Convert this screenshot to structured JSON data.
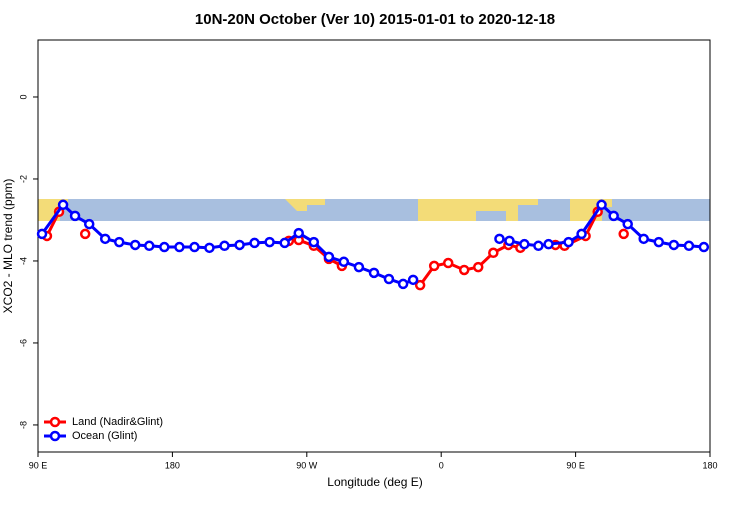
{
  "chart_data": {
    "type": "line",
    "title": "10N-20N October (Ver 10)   2015-01-01 to 2020-12-18",
    "x_label": "Longitude (deg E)",
    "y_label": "XCO2 - MLO trend (ppm)",
    "xlim": [
      90,
      540
    ],
    "ylim": [
      -8.66,
      1.39
    ],
    "xticks": [
      {
        "value": 90,
        "label": "90 E"
      },
      180,
      {
        "value": 270,
        "label": "90 W"
      },
      {
        "value": 360,
        "label": "0"
      },
      {
        "value": 450,
        "label": "90 E"
      },
      {
        "value": 540,
        "label": "180"
      }
    ],
    "yticks": [
      -8,
      -6,
      -4,
      -2,
      0
    ],
    "legend": "bottom-left",
    "series": [
      {
        "name": "Land (Nadir&Glint)",
        "color": "#ff0000",
        "x": [
          96,
          104.1,
          null,
          121.6,
          null,
          258,
          264.6,
          274.7,
          284.8,
          293.5,
          null,
          345.9,
          355.3,
          364.7,
          375.4,
          384.8,
          394.9,
          405,
          413,
          null,
          436.5,
          442.6,
          456.7,
          464.8,
          null,
          482.2
        ],
        "values": [
          -3.39,
          -2.8,
          null,
          -3.34,
          null,
          -3.51,
          -3.49,
          -3.63,
          -3.95,
          -4.12,
          null,
          -4.59,
          -4.12,
          -4.05,
          -4.22,
          -4.15,
          -3.8,
          -3.61,
          -3.68,
          null,
          -3.61,
          -3.63,
          -3.39,
          -2.8,
          null,
          -3.34
        ]
      },
      {
        "name": "Ocean (Glint)",
        "color": "#0000ff",
        "x": [
          92.7,
          106.8,
          114.8,
          124.3,
          135,
          144.4,
          155.1,
          164.5,
          174.6,
          184.7,
          194.8,
          204.8,
          214.9,
          225,
          235,
          245.1,
          255.2,
          264.6,
          274.7,
          284.8,
          294.8,
          304.9,
          315,
          325,
          334.5,
          341.2,
          null,
          399,
          405.7,
          415.7,
          425.1,
          431.9,
          445.3,
          454,
          467.4,
          475.5,
          484.9,
          495.6,
          505.7,
          515.8,
          525.9,
          535.9
        ],
        "values": [
          -3.34,
          -2.63,
          -2.9,
          -3.1,
          -3.46,
          -3.54,
          -3.61,
          -3.63,
          -3.66,
          -3.66,
          -3.66,
          -3.68,
          -3.63,
          -3.61,
          -3.56,
          -3.54,
          -3.56,
          -3.32,
          -3.54,
          -3.9,
          -4.02,
          -4.15,
          -4.29,
          -4.44,
          -4.56,
          -4.46,
          null,
          -3.46,
          -3.51,
          -3.59,
          -3.63,
          -3.59,
          -3.54,
          -3.34,
          -2.63,
          -2.9,
          -3.1,
          -3.46,
          -3.54,
          -3.61,
          -3.63,
          -3.66
        ]
      }
    ]
  }
}
